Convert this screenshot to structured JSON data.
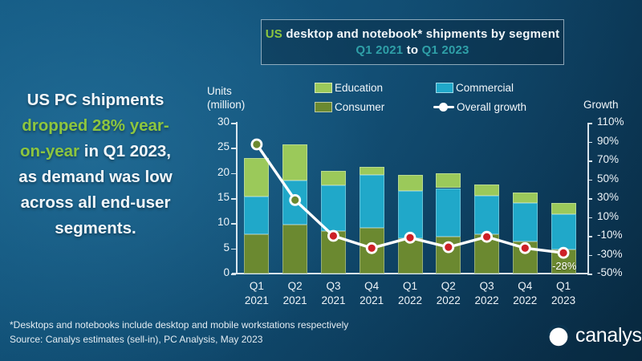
{
  "title": {
    "prefix": "US",
    "rest": " desktop and notebook* shipments by segment",
    "range_start": "Q1 2021",
    "to": "to",
    "range_end": "Q1 2023"
  },
  "headline": {
    "l1": "US PC shipments",
    "l2": "dropped 28% year-",
    "l3a": "on-year",
    "l3b": "in Q1 2023,",
    "l4": "as demand was low",
    "l5": "across all end-user",
    "l6": "segments."
  },
  "legend": {
    "education": "Education",
    "commercial": "Commercial",
    "consumer": "Consumer",
    "growth": "Overall growth"
  },
  "axes": {
    "units_label_1": "Units",
    "units_label_2": "(million)",
    "growth_label": "Growth"
  },
  "colors": {
    "accent_green": "#8dc63f",
    "title_teal": "#2fa0a8",
    "education": "#9bc95a",
    "commercial": "#20a8c9",
    "consumer": "#6b8930",
    "line": "#ffffff",
    "marker_positive": "#6b8930",
    "marker_negative": "#cd2026"
  },
  "chart_data": {
    "type": "bar",
    "stacked": true,
    "title": "US desktop and notebook shipments by segment Q1 2021 to Q1 2023",
    "categories": [
      "Q1 2021",
      "Q2 2021",
      "Q3 2021",
      "Q4 2021",
      "Q1 2022",
      "Q2 2022",
      "Q3 2022",
      "Q4 2022",
      "Q1 2023"
    ],
    "series": [
      {
        "name": "Consumer",
        "color": "#6b8930",
        "values": [
          7.8,
          9.7,
          8.4,
          9.1,
          7.0,
          7.3,
          7.8,
          6.4,
          4.8
        ]
      },
      {
        "name": "Commercial",
        "color": "#20a8c9",
        "values": [
          7.5,
          8.8,
          9.1,
          10.5,
          9.4,
          9.7,
          7.7,
          7.7,
          7.0
        ]
      },
      {
        "name": "Education",
        "color": "#9bc95a",
        "values": [
          7.7,
          7.2,
          3.0,
          1.7,
          3.3,
          3.0,
          2.3,
          2.1,
          2.3
        ]
      }
    ],
    "line_series": {
      "name": "Overall growth",
      "values": [
        87,
        28,
        -10,
        -23,
        -12,
        -22,
        -11,
        -23,
        -28
      ],
      "color": "#ffffff",
      "marker_positive": "#6b8930",
      "marker_negative": "#cd2026"
    },
    "y_left": {
      "label": "Units (million)",
      "min": 0,
      "max": 30,
      "step": 5,
      "ticks": [
        "30",
        "25",
        "20",
        "15",
        "10",
        "5",
        "0"
      ]
    },
    "y_right": {
      "label": "Growth",
      "min": -50,
      "max": 110,
      "step": 20,
      "ticks": [
        "110%",
        "90%",
        "70%",
        "50%",
        "30%",
        "10%",
        "-10%",
        "-30%",
        "-50%"
      ]
    },
    "annotation": {
      "text": "-28%",
      "index": 8
    },
    "legend_position": "top",
    "grid": false
  },
  "footer": {
    "note": "*Desktops and notebooks include desktop and mobile workstations respectively",
    "source": "Source: Canalys estimates (sell-in), PC Analysis, May 2023",
    "brand": "canalys"
  }
}
